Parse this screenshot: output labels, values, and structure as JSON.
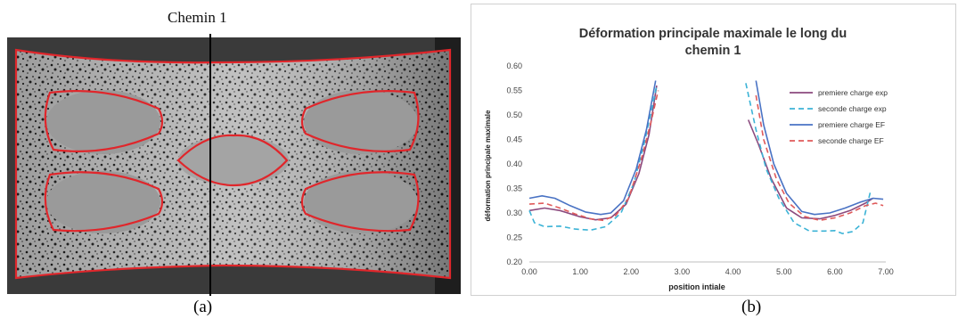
{
  "panel_a": {
    "path_label": "Chemin 1",
    "caption": "(a)"
  },
  "panel_b": {
    "caption": "(b)"
  },
  "colors": {
    "specimen_outline": "#e0262b",
    "path_line": "#000000",
    "premiere_exp": "#8b4a7e",
    "seconde_exp": "#3cb3d6",
    "premiere_ef": "#4a73c4",
    "seconde_ef": "#e05a5a"
  },
  "chart_data": {
    "type": "line",
    "title_line1": "Déformation principale maximale le long du",
    "title_line2": "chemin 1",
    "xlabel": "position intiale",
    "ylabel": "déformation principale maximale",
    "xlim": [
      0,
      7
    ],
    "ylim": [
      0.2,
      0.6
    ],
    "xticks": [
      "0.00",
      "1.00",
      "2.00",
      "3.00",
      "4.00",
      "5.00",
      "6.00",
      "7.00"
    ],
    "yticks": [
      "0.20",
      "0.25",
      "0.30",
      "0.35",
      "0.40",
      "0.45",
      "0.50",
      "0.55",
      "0.60"
    ],
    "grid": false,
    "legend_position": "right",
    "series": [
      {
        "name": "premiere charge exp",
        "color": "#8b4a7e",
        "dash": "solid",
        "segments": [
          [
            [
              0.0,
              0.305
            ],
            [
              0.3,
              0.31
            ],
            [
              0.6,
              0.305
            ],
            [
              1.0,
              0.292
            ],
            [
              1.3,
              0.286
            ],
            [
              1.6,
              0.29
            ],
            [
              1.9,
              0.318
            ],
            [
              2.15,
              0.38
            ],
            [
              2.35,
              0.46
            ],
            [
              2.5,
              0.56
            ]
          ],
          [
            [
              4.3,
              0.49
            ],
            [
              4.5,
              0.44
            ],
            [
              4.75,
              0.37
            ],
            [
              5.05,
              0.31
            ],
            [
              5.35,
              0.29
            ],
            [
              5.7,
              0.288
            ],
            [
              6.0,
              0.295
            ],
            [
              6.3,
              0.305
            ],
            [
              6.6,
              0.32
            ],
            [
              6.75,
              0.33
            ]
          ]
        ]
      },
      {
        "name": "seconde charge exp",
        "color": "#3cb3d6",
        "dash": "dashed",
        "segments": [
          [
            [
              0.0,
              0.305
            ],
            [
              0.1,
              0.28
            ],
            [
              0.3,
              0.272
            ],
            [
              0.6,
              0.273
            ],
            [
              0.9,
              0.267
            ],
            [
              1.2,
              0.265
            ],
            [
              1.5,
              0.272
            ],
            [
              1.8,
              0.3
            ],
            [
              2.05,
              0.36
            ],
            [
              2.25,
              0.44
            ],
            [
              2.4,
              0.51
            ],
            [
              2.5,
              0.56
            ]
          ],
          [
            [
              4.25,
              0.565
            ],
            [
              4.45,
              0.47
            ],
            [
              4.65,
              0.39
            ],
            [
              4.9,
              0.33
            ],
            [
              5.2,
              0.28
            ],
            [
              5.5,
              0.263
            ],
            [
              5.8,
              0.263
            ],
            [
              6.0,
              0.264
            ],
            [
              6.15,
              0.258
            ],
            [
              6.35,
              0.262
            ],
            [
              6.55,
              0.28
            ],
            [
              6.7,
              0.345
            ]
          ]
        ]
      },
      {
        "name": "premiere charge EF",
        "color": "#4a73c4",
        "dash": "solid",
        "segments": [
          [
            [
              0.0,
              0.33
            ],
            [
              0.25,
              0.335
            ],
            [
              0.5,
              0.33
            ],
            [
              0.8,
              0.315
            ],
            [
              1.1,
              0.302
            ],
            [
              1.4,
              0.297
            ],
            [
              1.6,
              0.3
            ],
            [
              1.85,
              0.325
            ],
            [
              2.1,
              0.39
            ],
            [
              2.3,
              0.47
            ],
            [
              2.48,
              0.57
            ]
          ],
          [
            [
              4.45,
              0.57
            ],
            [
              4.6,
              0.48
            ],
            [
              4.8,
              0.4
            ],
            [
              5.05,
              0.34
            ],
            [
              5.35,
              0.303
            ],
            [
              5.6,
              0.297
            ],
            [
              5.9,
              0.3
            ],
            [
              6.2,
              0.31
            ],
            [
              6.5,
              0.322
            ],
            [
              6.75,
              0.33
            ],
            [
              6.95,
              0.328
            ]
          ]
        ]
      },
      {
        "name": "seconde charge EF",
        "color": "#e05a5a",
        "dash": "dashed",
        "segments": [
          [
            [
              0.0,
              0.318
            ],
            [
              0.3,
              0.32
            ],
            [
              0.6,
              0.31
            ],
            [
              0.9,
              0.298
            ],
            [
              1.2,
              0.288
            ],
            [
              1.45,
              0.285
            ],
            [
              1.7,
              0.295
            ],
            [
              1.95,
              0.33
            ],
            [
              2.2,
              0.41
            ],
            [
              2.4,
              0.49
            ],
            [
              2.53,
              0.55
            ]
          ],
          [
            [
              4.45,
              0.54
            ],
            [
              4.6,
              0.45
            ],
            [
              4.85,
              0.37
            ],
            [
              5.1,
              0.32
            ],
            [
              5.4,
              0.293
            ],
            [
              5.7,
              0.285
            ],
            [
              6.0,
              0.29
            ],
            [
              6.3,
              0.3
            ],
            [
              6.6,
              0.315
            ],
            [
              6.8,
              0.32
            ],
            [
              6.95,
              0.315
            ]
          ]
        ]
      }
    ]
  }
}
